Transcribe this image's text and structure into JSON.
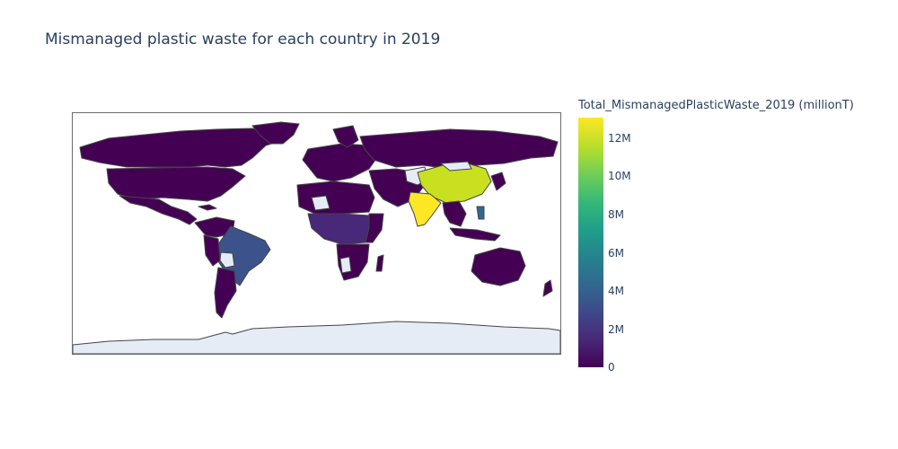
{
  "title": "Mismanaged plastic waste for each country in 2019",
  "colorbar": {
    "title": "Total_MismanagedPlasticWaste_2019 (millionT)",
    "min": 0,
    "max": 12.9,
    "ticks": [
      {
        "label": "0",
        "value": 0
      },
      {
        "label": "2M",
        "value": 2
      },
      {
        "label": "4M",
        "value": 4
      },
      {
        "label": "6M",
        "value": 6
      },
      {
        "label": "8M",
        "value": 8
      },
      {
        "label": "10M",
        "value": 10
      },
      {
        "label": "12M",
        "value": 12
      }
    ],
    "colorscale": "Viridis"
  },
  "colors": {
    "low": "#440154",
    "mid_low": "#3b528b",
    "high": "#c8e020",
    "max": "#fde725",
    "no_data": "#e5ecf6",
    "border": "#444444"
  },
  "chart_data": {
    "type": "choropleth",
    "projection": "equirectangular",
    "metric": "Total_MismanagedPlasticWaste_2019 (millionT)",
    "regions": [
      {
        "name": "India",
        "value": 12.9
      },
      {
        "name": "China",
        "value": 11.5
      },
      {
        "name": "Brazil",
        "value": 3.3
      },
      {
        "name": "Nigeria",
        "value": 1.9
      },
      {
        "name": "Indonesia",
        "value": 1.0
      },
      {
        "name": "United States",
        "value": 0.3
      },
      {
        "name": "Russia",
        "value": 0.6
      },
      {
        "name": "Canada",
        "value": 0.05
      },
      {
        "name": "Australia",
        "value": 0.05
      },
      {
        "name": "Mexico",
        "value": 0.8
      },
      {
        "name": "Argentina",
        "value": 0.5
      },
      {
        "name": "Egypt",
        "value": 1.0
      }
    ]
  }
}
